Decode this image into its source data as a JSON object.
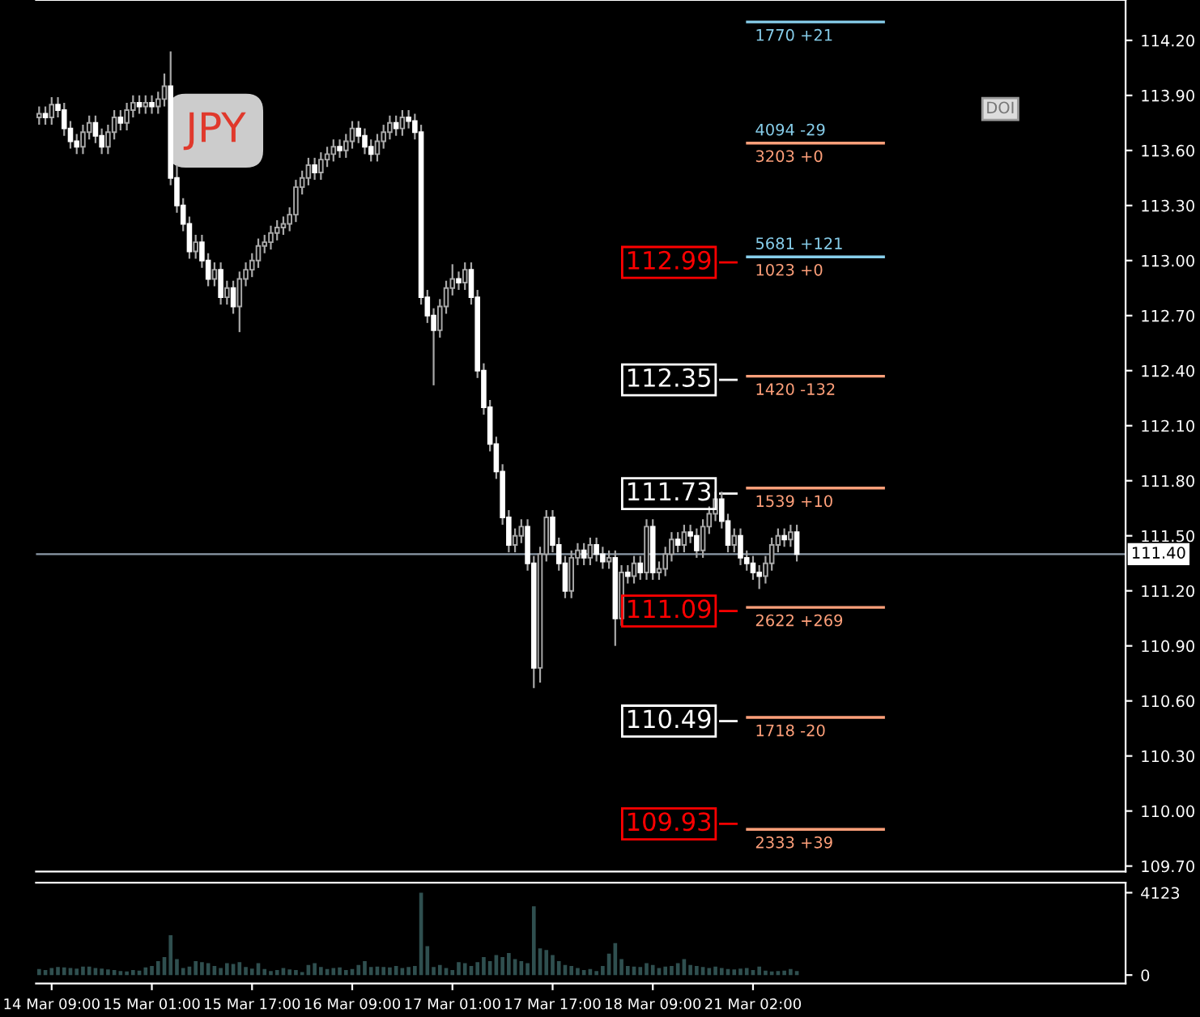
{
  "chart_data": [
    {
      "type": "candlestick",
      "tick_labels": "y",
      "categories": [
        null,
        null,
        null,
        null,
        null,
        null,
        null,
        null,
        null,
        null,
        null,
        null,
        null,
        null,
        null,
        null,
        null,
        null,
        null,
        null,
        null,
        null,
        null,
        null,
        null,
        null,
        null,
        null,
        null,
        null,
        null,
        null,
        null,
        null,
        null,
        null,
        null,
        null,
        null,
        null,
        null,
        null,
        null,
        null,
        null,
        null,
        null,
        null,
        null,
        null,
        null,
        null,
        null,
        null,
        null,
        null,
        null,
        null,
        null,
        null,
        null,
        null,
        null,
        null,
        null,
        null,
        null,
        null,
        null,
        null,
        null,
        null,
        null,
        null,
        null,
        null,
        null,
        null,
        null,
        null,
        null,
        null,
        null,
        null,
        null,
        null,
        null,
        null,
        null,
        null,
        null,
        null,
        null,
        null,
        null,
        null,
        null,
        null,
        null,
        null,
        null,
        null,
        null,
        null,
        null,
        null,
        null,
        null,
        null,
        null,
        null,
        null,
        null,
        null,
        null,
        null,
        null,
        null,
        null,
        null,
        null,
        null,
        null,
        null,
        null,
        null,
        null,
        null,
        null,
        null,
        null,
        null,
        null,
        null,
        null,
        null,
        null,
        null,
        null,
        null,
        null,
        null,
        null,
        null,
        null,
        null,
        null,
        null,
        null,
        null,
        null,
        null,
        null,
        null,
        null,
        null,
        null,
        null,
        null,
        null,
        null,
        null,
        null,
        null,
        null,
        null,
        null,
        null,
        null,
        null,
        null,
        null,
        null,
        null
      ],
      "ohlc": [
        [
          113.78,
          113.84,
          113.74,
          113.8
        ],
        [
          113.8,
          113.84,
          113.74,
          113.78
        ],
        [
          113.78,
          113.89,
          113.74,
          113.85
        ],
        [
          113.85,
          113.89,
          113.78,
          113.82
        ],
        [
          113.82,
          113.86,
          113.68,
          113.72
        ],
        [
          113.72,
          113.76,
          113.61,
          113.65
        ],
        [
          113.65,
          113.69,
          113.58,
          113.62
        ],
        [
          113.62,
          113.74,
          113.58,
          113.7
        ],
        [
          113.7,
          113.79,
          113.66,
          113.75
        ],
        [
          113.75,
          113.79,
          113.64,
          113.68
        ],
        [
          113.68,
          113.72,
          113.58,
          113.62
        ],
        [
          113.62,
          113.74,
          113.58,
          113.7
        ],
        [
          113.7,
          113.82,
          113.66,
          113.78
        ],
        [
          113.78,
          113.82,
          113.71,
          113.75
        ],
        [
          113.75,
          113.86,
          113.71,
          113.82
        ],
        [
          113.82,
          113.9,
          113.78,
          113.86
        ],
        [
          113.86,
          113.9,
          113.8,
          113.84
        ],
        [
          113.84,
          113.9,
          113.8,
          113.86
        ],
        [
          113.86,
          113.9,
          113.8,
          113.84
        ],
        [
          113.84,
          113.92,
          113.8,
          113.88
        ],
        [
          113.88,
          114.02,
          113.84,
          113.95
        ],
        [
          113.95,
          114.14,
          113.41,
          113.45
        ],
        [
          113.45,
          113.52,
          113.26,
          113.3
        ],
        [
          113.3,
          113.34,
          113.16,
          113.2
        ],
        [
          113.2,
          113.24,
          113.01,
          113.05
        ],
        [
          113.05,
          113.14,
          113.01,
          113.1
        ],
        [
          113.1,
          113.14,
          112.96,
          113.0
        ],
        [
          113.0,
          113.04,
          112.86,
          112.9
        ],
        [
          112.9,
          112.99,
          112.86,
          112.95
        ],
        [
          112.95,
          112.99,
          112.76,
          112.8
        ],
        [
          112.8,
          112.89,
          112.76,
          112.85
        ],
        [
          112.85,
          112.89,
          112.71,
          112.75
        ],
        [
          112.75,
          112.94,
          112.61,
          112.9
        ],
        [
          112.9,
          112.99,
          112.86,
          112.95
        ],
        [
          112.95,
          113.04,
          112.91,
          113.0
        ],
        [
          113.0,
          113.12,
          112.96,
          113.08
        ],
        [
          113.08,
          113.14,
          113.04,
          113.1
        ],
        [
          113.1,
          113.19,
          113.06,
          113.15
        ],
        [
          113.15,
          113.22,
          113.11,
          113.18
        ],
        [
          113.18,
          113.24,
          113.14,
          113.2
        ],
        [
          113.2,
          113.29,
          113.16,
          113.25
        ],
        [
          113.25,
          113.44,
          113.21,
          113.4
        ],
        [
          113.4,
          113.49,
          113.36,
          113.45
        ],
        [
          113.45,
          113.56,
          113.41,
          113.52
        ],
        [
          113.52,
          113.56,
          113.44,
          113.48
        ],
        [
          113.48,
          113.59,
          113.44,
          113.55
        ],
        [
          113.55,
          113.62,
          113.51,
          113.58
        ],
        [
          113.58,
          113.66,
          113.54,
          113.62
        ],
        [
          113.62,
          113.66,
          113.56,
          113.6
        ],
        [
          113.6,
          113.69,
          113.56,
          113.65
        ],
        [
          113.65,
          113.76,
          113.61,
          113.72
        ],
        [
          113.72,
          113.76,
          113.64,
          113.68
        ],
        [
          113.68,
          113.72,
          113.58,
          113.62
        ],
        [
          113.62,
          113.66,
          113.54,
          113.58
        ],
        [
          113.58,
          113.69,
          113.54,
          113.65
        ],
        [
          113.65,
          113.74,
          113.61,
          113.7
        ],
        [
          113.7,
          113.79,
          113.66,
          113.75
        ],
        [
          113.75,
          113.79,
          113.68,
          113.72
        ],
        [
          113.72,
          113.82,
          113.68,
          113.78
        ],
        [
          113.78,
          113.82,
          113.72,
          113.76
        ],
        [
          113.76,
          113.8,
          113.66,
          113.7
        ],
        [
          113.7,
          113.74,
          112.76,
          112.8
        ],
        [
          112.8,
          112.84,
          112.66,
          112.7
        ],
        [
          112.7,
          112.74,
          112.32,
          112.62
        ],
        [
          112.62,
          112.79,
          112.58,
          112.75
        ],
        [
          112.75,
          112.89,
          112.71,
          112.85
        ],
        [
          112.85,
          112.98,
          112.81,
          112.9
        ],
        [
          112.9,
          112.94,
          112.84,
          112.88
        ],
        [
          112.88,
          112.99,
          112.84,
          112.95
        ],
        [
          112.95,
          112.99,
          112.76,
          112.8
        ],
        [
          112.8,
          112.84,
          112.36,
          112.4
        ],
        [
          112.4,
          112.44,
          112.16,
          112.2
        ],
        [
          112.2,
          112.24,
          111.96,
          112.0
        ],
        [
          112.0,
          112.04,
          111.81,
          111.85
        ],
        [
          111.85,
          111.89,
          111.56,
          111.6
        ],
        [
          111.6,
          111.64,
          111.41,
          111.45
        ],
        [
          111.45,
          111.54,
          111.41,
          111.5
        ],
        [
          111.5,
          111.59,
          111.46,
          111.55
        ],
        [
          111.55,
          111.59,
          111.31,
          111.35
        ],
        [
          111.35,
          111.39,
          110.67,
          110.78
        ],
        [
          110.78,
          111.44,
          110.7,
          111.4
        ],
        [
          111.4,
          111.64,
          111.36,
          111.6
        ],
        [
          111.6,
          111.64,
          111.41,
          111.45
        ],
        [
          111.45,
          111.49,
          111.31,
          111.35
        ],
        [
          111.35,
          111.39,
          111.16,
          111.2
        ],
        [
          111.2,
          111.42,
          111.16,
          111.38
        ],
        [
          111.38,
          111.46,
          111.34,
          111.42
        ],
        [
          111.42,
          111.46,
          111.34,
          111.38
        ],
        [
          111.38,
          111.49,
          111.34,
          111.45
        ],
        [
          111.45,
          111.49,
          111.36,
          111.4
        ],
        [
          111.4,
          111.44,
          111.32,
          111.36
        ],
        [
          111.36,
          111.42,
          111.32,
          111.38
        ],
        [
          111.38,
          111.42,
          110.9,
          111.05
        ],
        [
          111.05,
          111.34,
          111.01,
          111.3
        ],
        [
          111.3,
          111.34,
          111.24,
          111.28
        ],
        [
          111.28,
          111.39,
          111.24,
          111.35
        ],
        [
          111.35,
          111.39,
          111.26,
          111.3
        ],
        [
          111.3,
          111.59,
          111.26,
          111.55
        ],
        [
          111.55,
          111.59,
          111.26,
          111.3
        ],
        [
          111.3,
          111.36,
          111.26,
          111.32
        ],
        [
          111.32,
          111.44,
          111.28,
          111.4
        ],
        [
          111.4,
          111.52,
          111.36,
          111.48
        ],
        [
          111.48,
          111.52,
          111.41,
          111.45
        ],
        [
          111.45,
          111.56,
          111.41,
          111.52
        ],
        [
          111.52,
          111.56,
          111.46,
          111.5
        ],
        [
          111.5,
          111.54,
          111.38,
          111.42
        ],
        [
          111.42,
          111.59,
          111.38,
          111.55
        ],
        [
          111.55,
          111.66,
          111.51,
          111.62
        ],
        [
          111.62,
          111.74,
          111.58,
          111.7
        ],
        [
          111.7,
          111.74,
          111.54,
          111.58
        ],
        [
          111.58,
          111.62,
          111.41,
          111.45
        ],
        [
          111.45,
          111.54,
          111.41,
          111.5
        ],
        [
          111.5,
          111.54,
          111.34,
          111.38
        ],
        [
          111.38,
          111.42,
          111.31,
          111.35
        ],
        [
          111.35,
          111.39,
          111.26,
          111.3
        ],
        [
          111.3,
          111.34,
          111.21,
          111.28
        ],
        [
          111.28,
          111.39,
          111.24,
          111.35
        ],
        [
          111.35,
          111.49,
          111.31,
          111.45
        ],
        [
          111.45,
          111.54,
          111.41,
          111.5
        ],
        [
          111.5,
          111.54,
          111.44,
          111.48
        ],
        [
          111.48,
          111.56,
          111.44,
          111.52
        ],
        [
          111.52,
          111.56,
          111.36,
          111.4
        ],
        null,
        null,
        null,
        null,
        null,
        null,
        null,
        null,
        null,
        null,
        null,
        null,
        null,
        null,
        null,
        null,
        null,
        null,
        null,
        null,
        null,
        null,
        null,
        null,
        null,
        null,
        null,
        null,
        null,
        null,
        null,
        null,
        null,
        null,
        null,
        null,
        null,
        null,
        null,
        null,
        null,
        null,
        null,
        null,
        null,
        null,
        null,
        null,
        null,
        null,
        null,
        null
      ],
      "ylim": [
        109.67,
        114.42
      ],
      "yticks": [
        {
          "value": 109.7,
          "label": "109.70"
        },
        {
          "value": 110.0,
          "label": "110.00"
        },
        {
          "value": 110.3,
          "label": "110.30"
        },
        {
          "value": 110.6,
          "label": "110.60"
        },
        {
          "value": 110.9,
          "label": "110.90"
        },
        {
          "value": 111.2,
          "label": "111.20"
        },
        {
          "value": 111.5,
          "label": "111.50"
        },
        {
          "value": 111.8,
          "label": "111.80"
        },
        {
          "value": 112.1,
          "label": "112.10"
        },
        {
          "value": 112.4,
          "label": "112.40"
        },
        {
          "value": 112.7,
          "label": "112.70"
        },
        {
          "value": 113.0,
          "label": "113.00"
        },
        {
          "value": 113.3,
          "label": "113.30"
        },
        {
          "value": 113.6,
          "label": "113.60"
        },
        {
          "value": 113.9,
          "label": "113.90"
        },
        {
          "value": 114.2,
          "label": "114.20"
        }
      ],
      "ref_lines": [
        {
          "axis": "y",
          "value": 111.4,
          "label": "111.40",
          "color": "#8c9aa8"
        },
        {
          "axis": "y",
          "value": 112.99,
          "label": "112.99",
          "color": "#ff0000"
        },
        {
          "axis": "y",
          "value": 112.35,
          "label": "112.35",
          "color": "#ffffff"
        },
        {
          "axis": "y",
          "value": 111.73,
          "label": "111.73",
          "color": "#ffffff"
        },
        {
          "axis": "y",
          "value": 111.09,
          "label": "111.09",
          "color": "#ff0000"
        },
        {
          "axis": "y",
          "value": 110.49,
          "label": "110.49",
          "color": "#ffffff"
        },
        {
          "axis": "y",
          "value": 109.93,
          "label": "109.93",
          "color": "#ff0000"
        },
        {
          "axis": "y",
          "value": 114.3,
          "color": "#87ceeb"
        },
        {
          "axis": "y",
          "value": 113.64,
          "color": "#ffa07a"
        },
        {
          "axis": "y",
          "value": 113.02,
          "color": "#87ceeb"
        },
        {
          "axis": "y",
          "value": 112.37,
          "color": "#ffa07a"
        },
        {
          "axis": "y",
          "value": 111.76,
          "color": "#ffa07a"
        },
        {
          "axis": "y",
          "value": 111.11,
          "color": "#ffa07a"
        },
        {
          "axis": "y",
          "value": 110.51,
          "color": "#ffa07a"
        },
        {
          "axis": "y",
          "value": 109.9,
          "color": "#ffa07a"
        }
      ],
      "annotations": [
        "JPY",
        "DOI",
        {
          "text": "1770 +21",
          "y": 114.3
        },
        {
          "text": "4094 -29",
          "y": 113.64
        },
        {
          "text": "3203 +0",
          "y": 113.64
        },
        {
          "text": "5681 +121",
          "y": 113.02
        },
        {
          "text": "1023 +0",
          "y": 113.02
        },
        {
          "text": "1420 -132",
          "y": 112.37
        },
        {
          "text": "1539 +10",
          "y": 111.76
        },
        {
          "text": "2622 +269",
          "y": 111.11
        },
        {
          "text": "1718 -20",
          "y": 110.51
        },
        {
          "text": "2333 +39",
          "y": 109.9
        }
      ]
    },
    {
      "type": "bar",
      "color": "#2f4f4f",
      "categories": [
        null,
        null,
        "14 Mar 09:00",
        null,
        null,
        null,
        null,
        null,
        null,
        null,
        null,
        null,
        null,
        null,
        null,
        null,
        null,
        null,
        "15 Mar 01:00",
        null,
        null,
        null,
        null,
        null,
        null,
        null,
        null,
        null,
        null,
        null,
        null,
        null,
        null,
        null,
        "15 Mar 17:00",
        null,
        null,
        null,
        null,
        null,
        null,
        null,
        null,
        null,
        null,
        null,
        null,
        null,
        null,
        null,
        "16 Mar 09:00",
        null,
        null,
        null,
        null,
        null,
        null,
        null,
        null,
        null,
        null,
        null,
        null,
        null,
        null,
        null,
        "17 Mar 01:00",
        null,
        null,
        null,
        null,
        null,
        null,
        null,
        null,
        null,
        null,
        null,
        null,
        null,
        null,
        null,
        "17 Mar 17:00",
        null,
        null,
        null,
        null,
        null,
        null,
        null,
        null,
        null,
        null,
        null,
        null,
        null,
        null,
        null,
        "18 Mar 09:00",
        null,
        null,
        null,
        null,
        null,
        null,
        null,
        null,
        null,
        null,
        null,
        null,
        null,
        null,
        null,
        "21 Mar 02:00",
        null,
        null,
        null,
        null,
        null,
        null,
        null,
        null,
        null,
        null,
        null,
        null,
        null,
        null,
        null,
        null,
        null,
        null,
        null,
        null,
        null,
        null,
        null,
        null,
        null,
        null,
        null,
        null,
        null,
        null,
        null,
        null,
        null,
        null,
        null,
        null,
        null,
        null,
        null,
        null,
        null,
        null,
        null,
        null,
        null,
        null,
        null,
        null,
        null,
        null,
        null,
        null,
        null,
        null,
        null,
        null,
        null,
        null,
        null
      ],
      "values": [
        300,
        250,
        350,
        400,
        380,
        350,
        320,
        420,
        420,
        350,
        320,
        280,
        250,
        200,
        180,
        250,
        220,
        380,
        450,
        700,
        900,
        1990,
        800,
        350,
        420,
        700,
        650,
        600,
        450,
        350,
        600,
        550,
        650,
        400,
        320,
        600,
        300,
        200,
        250,
        350,
        280,
        250,
        150,
        500,
        600,
        400,
        300,
        350,
        380,
        250,
        300,
        500,
        700,
        400,
        420,
        400,
        380,
        450,
        350,
        400,
        450,
        4123,
        1450,
        400,
        500,
        350,
        250,
        650,
        600,
        450,
        650,
        900,
        700,
        1000,
        900,
        1100,
        800,
        700,
        600,
        3440,
        1340,
        1250,
        1000,
        700,
        500,
        450,
        350,
        250,
        300,
        200,
        450,
        1070,
        1600,
        800,
        450,
        420,
        400,
        600,
        500,
        350,
        420,
        450,
        600,
        800,
        500,
        450,
        400,
        350,
        420,
        350,
        300,
        280,
        320,
        350,
        250,
        420,
        220,
        180,
        200,
        220,
        300,
        200,
        null,
        null,
        null,
        null,
        null,
        null,
        null,
        null,
        null,
        null,
        null,
        null,
        null,
        null,
        null,
        null,
        null,
        null,
        null,
        null,
        null,
        null,
        null,
        null,
        null,
        null,
        null,
        null,
        null,
        null,
        null,
        null,
        null,
        null,
        null,
        null,
        null,
        null,
        null,
        null,
        null,
        null,
        null,
        null,
        null,
        null,
        null,
        null,
        null,
        null,
        null,
        null
      ],
      "ylim": [
        -420,
        4620
      ],
      "yticks": [
        0,
        4123
      ]
    }
  ]
}
